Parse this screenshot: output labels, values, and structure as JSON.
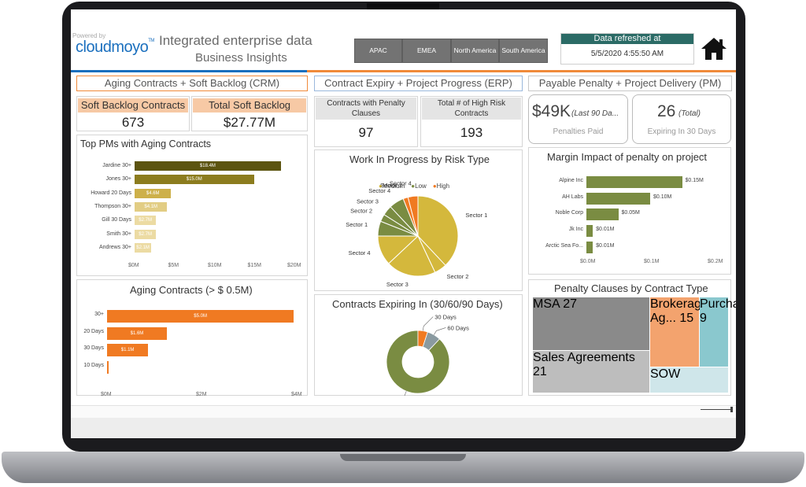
{
  "header": {
    "powered_by": "Powered by",
    "brand": "cloudmoyo",
    "brand_tm": "TM",
    "title_line1": "Integrated enterprise data",
    "title_line2": "Business Insights",
    "regions": [
      {
        "label": "APAC"
      },
      {
        "label": "EMEA"
      },
      {
        "label": "North America"
      },
      {
        "label": "South America"
      }
    ],
    "refresh_label": "Data refreshed at",
    "refresh_value": "5/5/2020 4:55:50 AM"
  },
  "sections": {
    "crm": "Aging Contracts + Soft Backlog (CRM)",
    "erp": "Contract Expiry + Project Progress (ERP)",
    "pm": "Payable Penalty + Project Delivery (PM)"
  },
  "kpis": {
    "soft_backlog_label": "Soft Backlog Contracts",
    "soft_backlog_value": "673",
    "total_backlog_label": "Total Soft Backlog",
    "total_backlog_value": "$27.77M",
    "penalty_clauses_label": "Contracts with Penalty Clauses",
    "penalty_clauses_value": "97",
    "high_risk_label": "Total # of High Risk Contracts",
    "high_risk_value": "193",
    "penalties_value": "$49K",
    "penalties_sub": "(Last 90 Da...",
    "penalties_label": "Penalties Paid",
    "expiring_value": "26",
    "expiring_sub": "(Total)",
    "expiring_label": "Expiring In 30 Days"
  },
  "colors": {
    "crm": "#f08a3a",
    "erp": "#1a6fbe",
    "pm": "#9c9c9c",
    "olive": "#7a8c42",
    "dark_olive": "#5c5410",
    "gold": "#b8a030",
    "light_gold": "#e8d58a",
    "orange": "#f07a22",
    "grey_tm": "#8a8a8a",
    "peach": "#f3a36e",
    "teal": "#8ac8ce"
  },
  "chart_data": [
    {
      "type": "bar",
      "orientation": "horizontal",
      "title": "Top PMs with Aging Contracts",
      "categories": [
        "Jardine 30+",
        "Jones 30+",
        "Howard 20 Days",
        "Thompson 30+",
        "Gill 30 Days",
        "Smith 30+",
        "Andrews 30+"
      ],
      "values": [
        18.4,
        15.0,
        4.6,
        4.1,
        2.7,
        2.7,
        2.1
      ],
      "labels": [
        "$18.4M",
        "$15.0M",
        "$4.6M",
        "$4.1M",
        "$2.7M",
        "$2.7M",
        "$2.1M"
      ],
      "xticks": [
        "$0M",
        "$5M",
        "$10M",
        "$15M",
        "$20M"
      ],
      "xlim": [
        0,
        20
      ]
    },
    {
      "type": "bar",
      "orientation": "horizontal",
      "title": "Aging Contracts (> $ 0.5M)",
      "categories": [
        "30+",
        "20 Days",
        "30 Days",
        "10 Days"
      ],
      "values": [
        5.0,
        1.6,
        1.1,
        0.05
      ],
      "labels": [
        "$5.0M",
        "$1.6M",
        "$1.1M",
        ""
      ],
      "xticks": [
        "$0M",
        "$2M",
        "$4M"
      ],
      "xlim": [
        0,
        5.1
      ]
    },
    {
      "type": "pie",
      "title": "Work In Progress by Risk Type",
      "legend": [
        "Medium",
        "Low",
        "High"
      ],
      "slices": [
        {
          "label": "Sector 1",
          "value": 38,
          "risk": "Medium"
        },
        {
          "label": "Sector 2",
          "value": 5,
          "risk": "Medium"
        },
        {
          "label": "Sector 3",
          "value": 20,
          "risk": "Medium"
        },
        {
          "label": "Sector 4",
          "value": 12,
          "risk": "Medium"
        },
        {
          "label": "Sector 1",
          "value": 6,
          "risk": "Low"
        },
        {
          "label": "Sector 2",
          "value": 3,
          "risk": "Low"
        },
        {
          "label": "Sector 3",
          "value": 4,
          "risk": "Low"
        },
        {
          "label": "Sector 4",
          "value": 6,
          "risk": "Low"
        },
        {
          "label": "Sector 1",
          "value": 2,
          "risk": "High"
        },
        {
          "label": "Sector 4",
          "value": 4,
          "risk": "High"
        }
      ]
    },
    {
      "type": "pie",
      "donut": true,
      "title": "Contracts Expiring In (30/60/90 Days)",
      "slices": [
        {
          "label": "90 Days",
          "value": 88
        },
        {
          "label": "30 Days",
          "value": 5
        },
        {
          "label": "60 Days",
          "value": 7
        }
      ]
    },
    {
      "type": "bar",
      "orientation": "horizontal",
      "title": "Margin Impact of penalty on project",
      "categories": [
        "Alpine Inc",
        "AH Labs",
        "Noble Corp",
        "Jk Inc",
        "Arctic Sea Fo..."
      ],
      "values": [
        0.15,
        0.1,
        0.05,
        0.01,
        0.01
      ],
      "labels": [
        "$0.15M",
        "$0.10M",
        "$0.05M",
        "$0.01M",
        "$0.01M"
      ],
      "xticks": [
        "$0.0M",
        "$0.1M",
        "$0.2M"
      ],
      "xlim": [
        0,
        0.2
      ]
    },
    {
      "type": "treemap",
      "title": "Penalty Clauses by Contract Type",
      "items": [
        {
          "label": "MSA",
          "value": 27
        },
        {
          "label": "Sales Agreements",
          "value": 21
        },
        {
          "label": "Brokerage Ag...",
          "value": 15
        },
        {
          "label": "Purcha...",
          "value": 9
        },
        {
          "label": "SOW",
          "value": ""
        }
      ]
    }
  ]
}
